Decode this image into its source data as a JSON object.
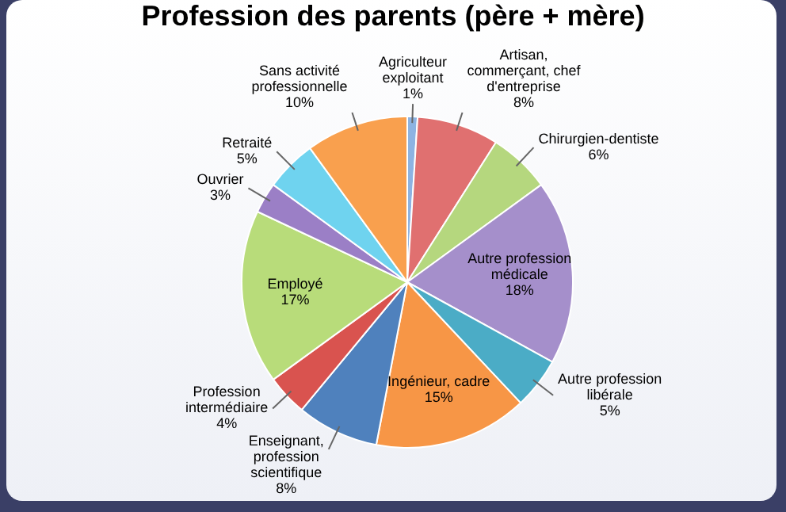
{
  "chart_data": {
    "type": "pie",
    "title": "Profession des parents (père + mère)",
    "categories": [
      "Agriculteur exploitant",
      "Artisan, commerçant, chef d'entreprise",
      "Chirurgien-dentiste",
      "Autre profession médicale",
      "Autre profession libérale",
      "Ingénieur, cadre",
      "Enseignant, profession scientifique",
      "Profession intermédiaire",
      "Employé",
      "Ouvrier",
      "Retraité",
      "Sans activité professionnelle"
    ],
    "values": [
      1,
      8,
      6,
      18,
      5,
      15,
      8,
      4,
      17,
      3,
      5,
      10
    ],
    "colors": [
      "#8db3e2",
      "#e07070",
      "#b5d77e",
      "#a58fcb",
      "#4bacc6",
      "#f79646",
      "#4f81bd",
      "#d9534f",
      "#b8dc7a",
      "#9b7fc6",
      "#6fd3ef",
      "#f9a04e"
    ],
    "value_labels": [
      "1%",
      "8%",
      "6%",
      "18%",
      "5%",
      "15%",
      "8%",
      "4%",
      "17%",
      "3%",
      "5%",
      "10%"
    ],
    "legend": false
  }
}
